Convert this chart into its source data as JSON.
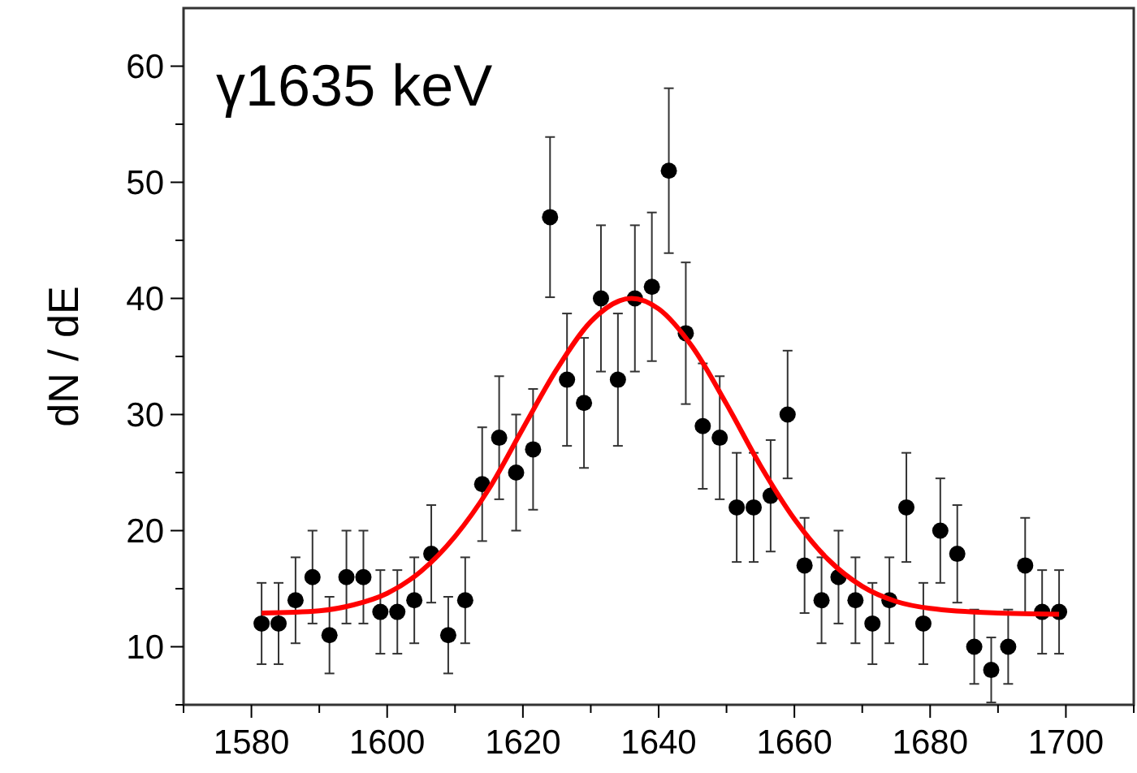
{
  "chart_data": {
    "type": "scatter",
    "ylabel": "dN / dE",
    "annotations": [
      "γ1635 keV"
    ],
    "xlim": [
      1570,
      1710
    ],
    "xticks": [
      1580,
      1600,
      1620,
      1640,
      1660,
      1680,
      1700
    ],
    "ylim": [
      5,
      65
    ],
    "yticks": [
      10,
      20,
      30,
      40,
      50,
      60
    ],
    "grid": false,
    "marker": "circle",
    "series": [
      {
        "color": "#000000",
        "x": [
          1581.5,
          1584,
          1586.5,
          1589,
          1591.5,
          1594,
          1596.5,
          1599,
          1601.5,
          1604,
          1606.5,
          1609,
          1611.5,
          1614,
          1616.5,
          1619,
          1621.5,
          1624,
          1626.5,
          1629,
          1631.5,
          1634,
          1636.5,
          1639,
          1641.5,
          1644,
          1646.5,
          1649,
          1651.5,
          1654,
          1656.5,
          1659,
          1661.5,
          1664,
          1666.5,
          1669,
          1671.5,
          1674,
          1676.5,
          1679,
          1681.5,
          1684,
          1686.5,
          1689,
          1691.5,
          1694,
          1696.5,
          1699
        ],
        "values": [
          12,
          12,
          14,
          16,
          11,
          16,
          16,
          13,
          13,
          14,
          18,
          11,
          14,
          24,
          28,
          25,
          27,
          47,
          33,
          31,
          40,
          33,
          40,
          41,
          51,
          37,
          29,
          28,
          22,
          22,
          23,
          30,
          17,
          14,
          16,
          14,
          12,
          14,
          22,
          12,
          20,
          18,
          10,
          8,
          10,
          17,
          13,
          13
        ],
        "errors": [
          3.5,
          3.5,
          3.7,
          4,
          3.3,
          4,
          4,
          3.6,
          3.6,
          3.7,
          4.2,
          3.3,
          3.7,
          4.9,
          5.3,
          5,
          5.2,
          6.9,
          5.7,
          5.6,
          6.3,
          5.7,
          6.3,
          6.4,
          7.1,
          6.1,
          5.4,
          5.3,
          4.7,
          4.7,
          4.8,
          5.5,
          4.1,
          3.7,
          4,
          3.7,
          3.5,
          3.7,
          4.7,
          3.5,
          4.5,
          4.2,
          3.2,
          2.8,
          3.2,
          4.1,
          3.6,
          3.6
        ]
      },
      {
        "type": "line",
        "color": "#ff0000",
        "marker": "none",
        "x": [
          1581.5,
          1590,
          1595,
          1600,
          1605,
          1610,
          1615,
          1620,
          1625,
          1630,
          1636,
          1640,
          1645,
          1650,
          1655,
          1660,
          1665,
          1670,
          1675,
          1680,
          1690,
          1699
        ],
        "values": [
          12.9,
          13.1,
          13.6,
          14.6,
          16.5,
          19.5,
          23.6,
          28.8,
          33.9,
          38,
          40,
          39.1,
          35.8,
          30.9,
          25.6,
          21,
          17.5,
          15.2,
          13.9,
          13.3,
          12.9,
          12.8
        ]
      }
    ]
  }
}
